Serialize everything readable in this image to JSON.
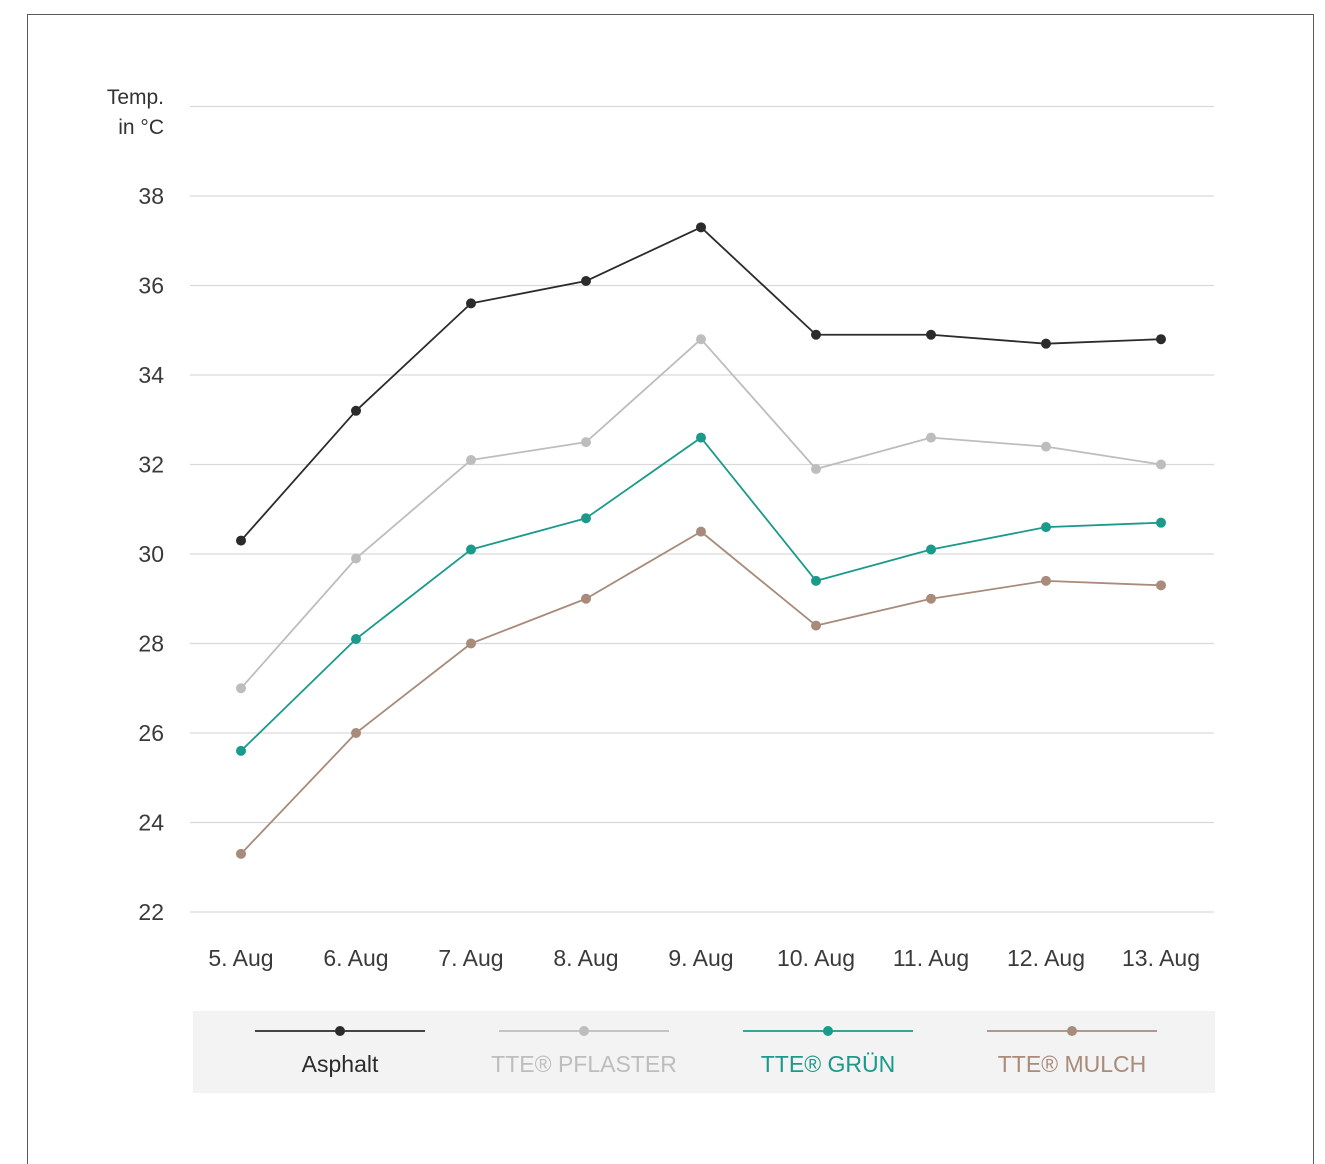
{
  "chart_data": {
    "type": "line",
    "ylabel": [
      "Temp.",
      "in °C"
    ],
    "xlabel": "",
    "ylim": [
      22,
      40
    ],
    "yticks": [
      22,
      24,
      26,
      28,
      30,
      32,
      34,
      36,
      38
    ],
    "categories": [
      "5. Aug",
      "6. Aug",
      "7. Aug",
      "8. Aug",
      "9. Aug",
      "10. Aug",
      "11. Aug",
      "12. Aug",
      "13. Aug"
    ],
    "grid": true,
    "legend_position": "bottom",
    "series": [
      {
        "name": "Asphalt",
        "color": "#2b2b2b",
        "values": [
          30.3,
          33.2,
          35.6,
          36.1,
          37.3,
          34.9,
          34.9,
          34.7,
          34.8
        ]
      },
      {
        "name": "TTE® PFLASTER",
        "color": "#bdbdbd",
        "values": [
          27.0,
          29.9,
          32.1,
          32.5,
          34.8,
          31.9,
          32.6,
          32.4,
          32.0
        ]
      },
      {
        "name": "TTE® GRÜN",
        "color": "#1a9a8a",
        "values": [
          25.6,
          28.1,
          30.1,
          30.8,
          32.6,
          29.4,
          30.1,
          30.6,
          30.7
        ]
      },
      {
        "name": "TTE® MULCH",
        "color": "#a88b7a",
        "values": [
          23.3,
          26.0,
          28.0,
          29.0,
          30.5,
          28.4,
          29.0,
          29.4,
          29.3
        ]
      }
    ]
  },
  "legend_background": "#f3f3f3",
  "grid_color": "#d9d9d9"
}
